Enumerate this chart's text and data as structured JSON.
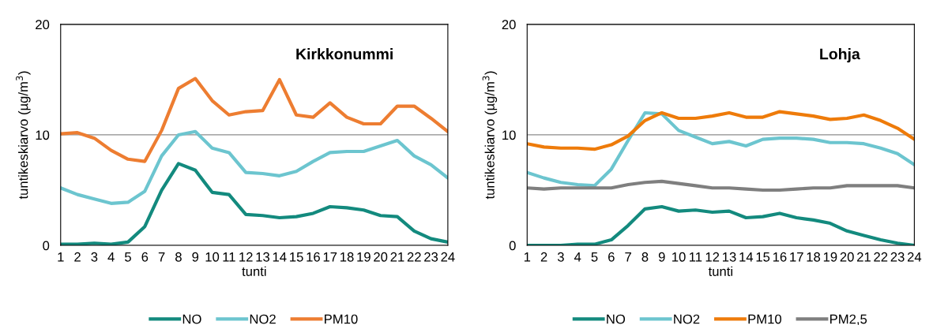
{
  "chart_data": [
    {
      "type": "line",
      "title": "Kirkkonummi",
      "xlabel": "tunti",
      "ylabel": "tuntikeskiarvo (µg/m$^{3}$)",
      "categories": [
        "1",
        "2",
        "3",
        "4",
        "5",
        "6",
        "7",
        "8",
        "9",
        "10",
        "11",
        "12",
        "13",
        "14",
        "15",
        "16",
        "17",
        "18",
        "19",
        "20",
        "21",
        "22",
        "23",
        "24"
      ],
      "ylim": [
        0,
        20
      ],
      "yticks": [
        0,
        10,
        20
      ],
      "grid": "y",
      "legend": "bottom",
      "marker": "none",
      "line_style": "solid",
      "series": [
        {
          "name": "NO",
          "color": "#138a7e",
          "values": [
            0.1,
            0.1,
            0.2,
            0.1,
            0.3,
            1.7,
            5.0,
            7.4,
            6.8,
            4.8,
            4.6,
            2.8,
            2.7,
            2.5,
            2.6,
            2.9,
            3.5,
            3.4,
            3.2,
            2.7,
            2.6,
            1.3,
            0.6,
            0.3
          ]
        },
        {
          "name": "NO2",
          "color": "#6cc5cf",
          "values": [
            5.2,
            4.6,
            4.2,
            3.8,
            3.9,
            4.9,
            8.1,
            10.0,
            10.3,
            8.8,
            8.4,
            6.6,
            6.5,
            6.3,
            6.7,
            7.6,
            8.4,
            8.5,
            8.5,
            9.0,
            9.5,
            8.1,
            7.3,
            6.1
          ]
        },
        {
          "name": "PM10",
          "color": "#ed7d31",
          "values": [
            10.1,
            10.2,
            9.7,
            8.6,
            7.8,
            7.6,
            10.4,
            14.2,
            15.1,
            13.1,
            11.8,
            12.1,
            12.2,
            15.0,
            11.8,
            11.6,
            12.9,
            11.6,
            11.0,
            11.0,
            12.6,
            12.6,
            11.5,
            10.3
          ]
        }
      ]
    },
    {
      "type": "line",
      "title": "Lohja",
      "xlabel": "tunti",
      "ylabel": "tuntikeskiarvo (µg/m$^{3}$)",
      "categories": [
        "1",
        "2",
        "3",
        "4",
        "5",
        "6",
        "7",
        "8",
        "9",
        "10",
        "11",
        "12",
        "13",
        "14",
        "15",
        "16",
        "17",
        "18",
        "19",
        "20",
        "21",
        "22",
        "23",
        "24"
      ],
      "ylim": [
        0,
        20
      ],
      "yticks": [
        0,
        10,
        20
      ],
      "grid": "y",
      "legend": "bottom",
      "marker": "none",
      "line_style": "solid",
      "series": [
        {
          "name": "NO",
          "color": "#138a7e",
          "values": [
            0,
            0,
            0,
            0.1,
            0.1,
            0.5,
            1.8,
            3.3,
            3.5,
            3.1,
            3.2,
            3.0,
            3.1,
            2.5,
            2.6,
            2.9,
            2.5,
            2.3,
            2.0,
            1.3,
            0.9,
            0.5,
            0.2,
            0
          ]
        },
        {
          "name": "NO2",
          "color": "#6cc5cf",
          "values": [
            6.6,
            6.1,
            5.7,
            5.5,
            5.4,
            6.9,
            9.5,
            12.0,
            11.9,
            10.4,
            9.8,
            9.2,
            9.4,
            9.0,
            9.6,
            9.7,
            9.7,
            9.6,
            9.3,
            9.3,
            9.2,
            8.8,
            8.3,
            7.3
          ]
        },
        {
          "name": "PM10",
          "color": "#ee7b0a",
          "values": [
            9.2,
            8.9,
            8.8,
            8.8,
            8.7,
            9.1,
            9.9,
            11.3,
            12.0,
            11.5,
            11.5,
            11.7,
            12.0,
            11.6,
            11.6,
            12.1,
            11.9,
            11.7,
            11.4,
            11.5,
            11.8,
            11.3,
            10.6,
            9.6
          ]
        },
        {
          "name": "PM2,5",
          "color": "#7f7f7f",
          "values": [
            5.2,
            5.1,
            5.2,
            5.2,
            5.2,
            5.2,
            5.5,
            5.7,
            5.8,
            5.6,
            5.4,
            5.2,
            5.2,
            5.1,
            5.0,
            5.0,
            5.1,
            5.2,
            5.2,
            5.4,
            5.4,
            5.4,
            5.4,
            5.2
          ]
        }
      ]
    }
  ]
}
